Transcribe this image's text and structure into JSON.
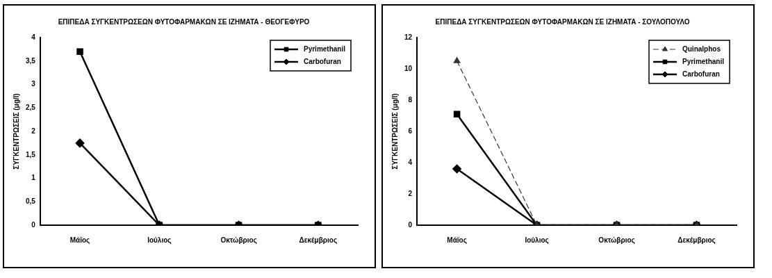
{
  "chart_data": [
    {
      "type": "line",
      "title": "ΕΠΙΠΕΔΑ ΣΥΓΚΕΝΤΡΩΣΕΩΝ ΦΥΤΟΦΑΡΜΑΚΩΝ ΣΕ ΙΖΗΜΑΤΑ - ΘΕΟΓΕΦΥΡΟ",
      "ylabel": "ΣΥΓΚΕΝΤΡΩΣΕΙΣ (μg/l)",
      "categories": [
        "Μάϊος",
        "Ιούλιος",
        "Οκτώβριος",
        "Δεκέμβριος"
      ],
      "series": [
        {
          "name": "Pyrimethanil",
          "color": "#000000",
          "marker": "square",
          "line_style": "solid",
          "values": [
            3.7,
            0,
            0,
            0
          ]
        },
        {
          "name": "Carbofuran",
          "color": "#000000",
          "marker": "diamond",
          "line_style": "solid",
          "values": [
            1.75,
            0,
            0,
            0
          ]
        }
      ],
      "ylim": [
        0,
        4
      ],
      "yticks": [
        0,
        {
          "value": 0.5,
          "label": "0,5"
        },
        1,
        {
          "value": 1.5,
          "label": "1,5"
        },
        2,
        {
          "value": 2.5,
          "label": "2,5"
        },
        3,
        {
          "value": 3.5,
          "label": "3,5"
        },
        4
      ],
      "grid": false,
      "legend": "top right"
    },
    {
      "type": "line",
      "title": "ΕΠΙΠΕΔΑ ΣΥΓΚΕΝΤΡΩΣΕΩΝ ΦΥΤΟΦΑΡΜΑΚΩΝ ΣΕ ΙΖΗΜΑΤΑ - ΣΟΥΛΟΠΟΥΛΟ",
      "ylabel": "ΣΥΓΚΕΝΤΡΩΣΕΙΣ (μg/l)",
      "categories": [
        "Μάϊος",
        "Ιούλιος",
        "Οκτώβριος",
        "Δεκέμβριος"
      ],
      "series": [
        {
          "name": "Quinalphos",
          "color": "#333333",
          "marker": "triangle",
          "line_style": "dashed",
          "values": [
            10.5,
            0,
            0,
            0
          ]
        },
        {
          "name": "Pyrimethanil",
          "color": "#000000",
          "marker": "square",
          "line_style": "solid",
          "values": [
            7.1,
            0,
            0,
            0
          ]
        },
        {
          "name": "Carbofuran",
          "color": "#000000",
          "marker": "diamond",
          "line_style": "solid",
          "values": [
            3.6,
            0,
            0,
            0
          ]
        }
      ],
      "ylim": [
        0,
        12
      ],
      "yticks": [
        0,
        2,
        4,
        6,
        8,
        10,
        12
      ],
      "grid": false,
      "legend": "top right"
    }
  ]
}
